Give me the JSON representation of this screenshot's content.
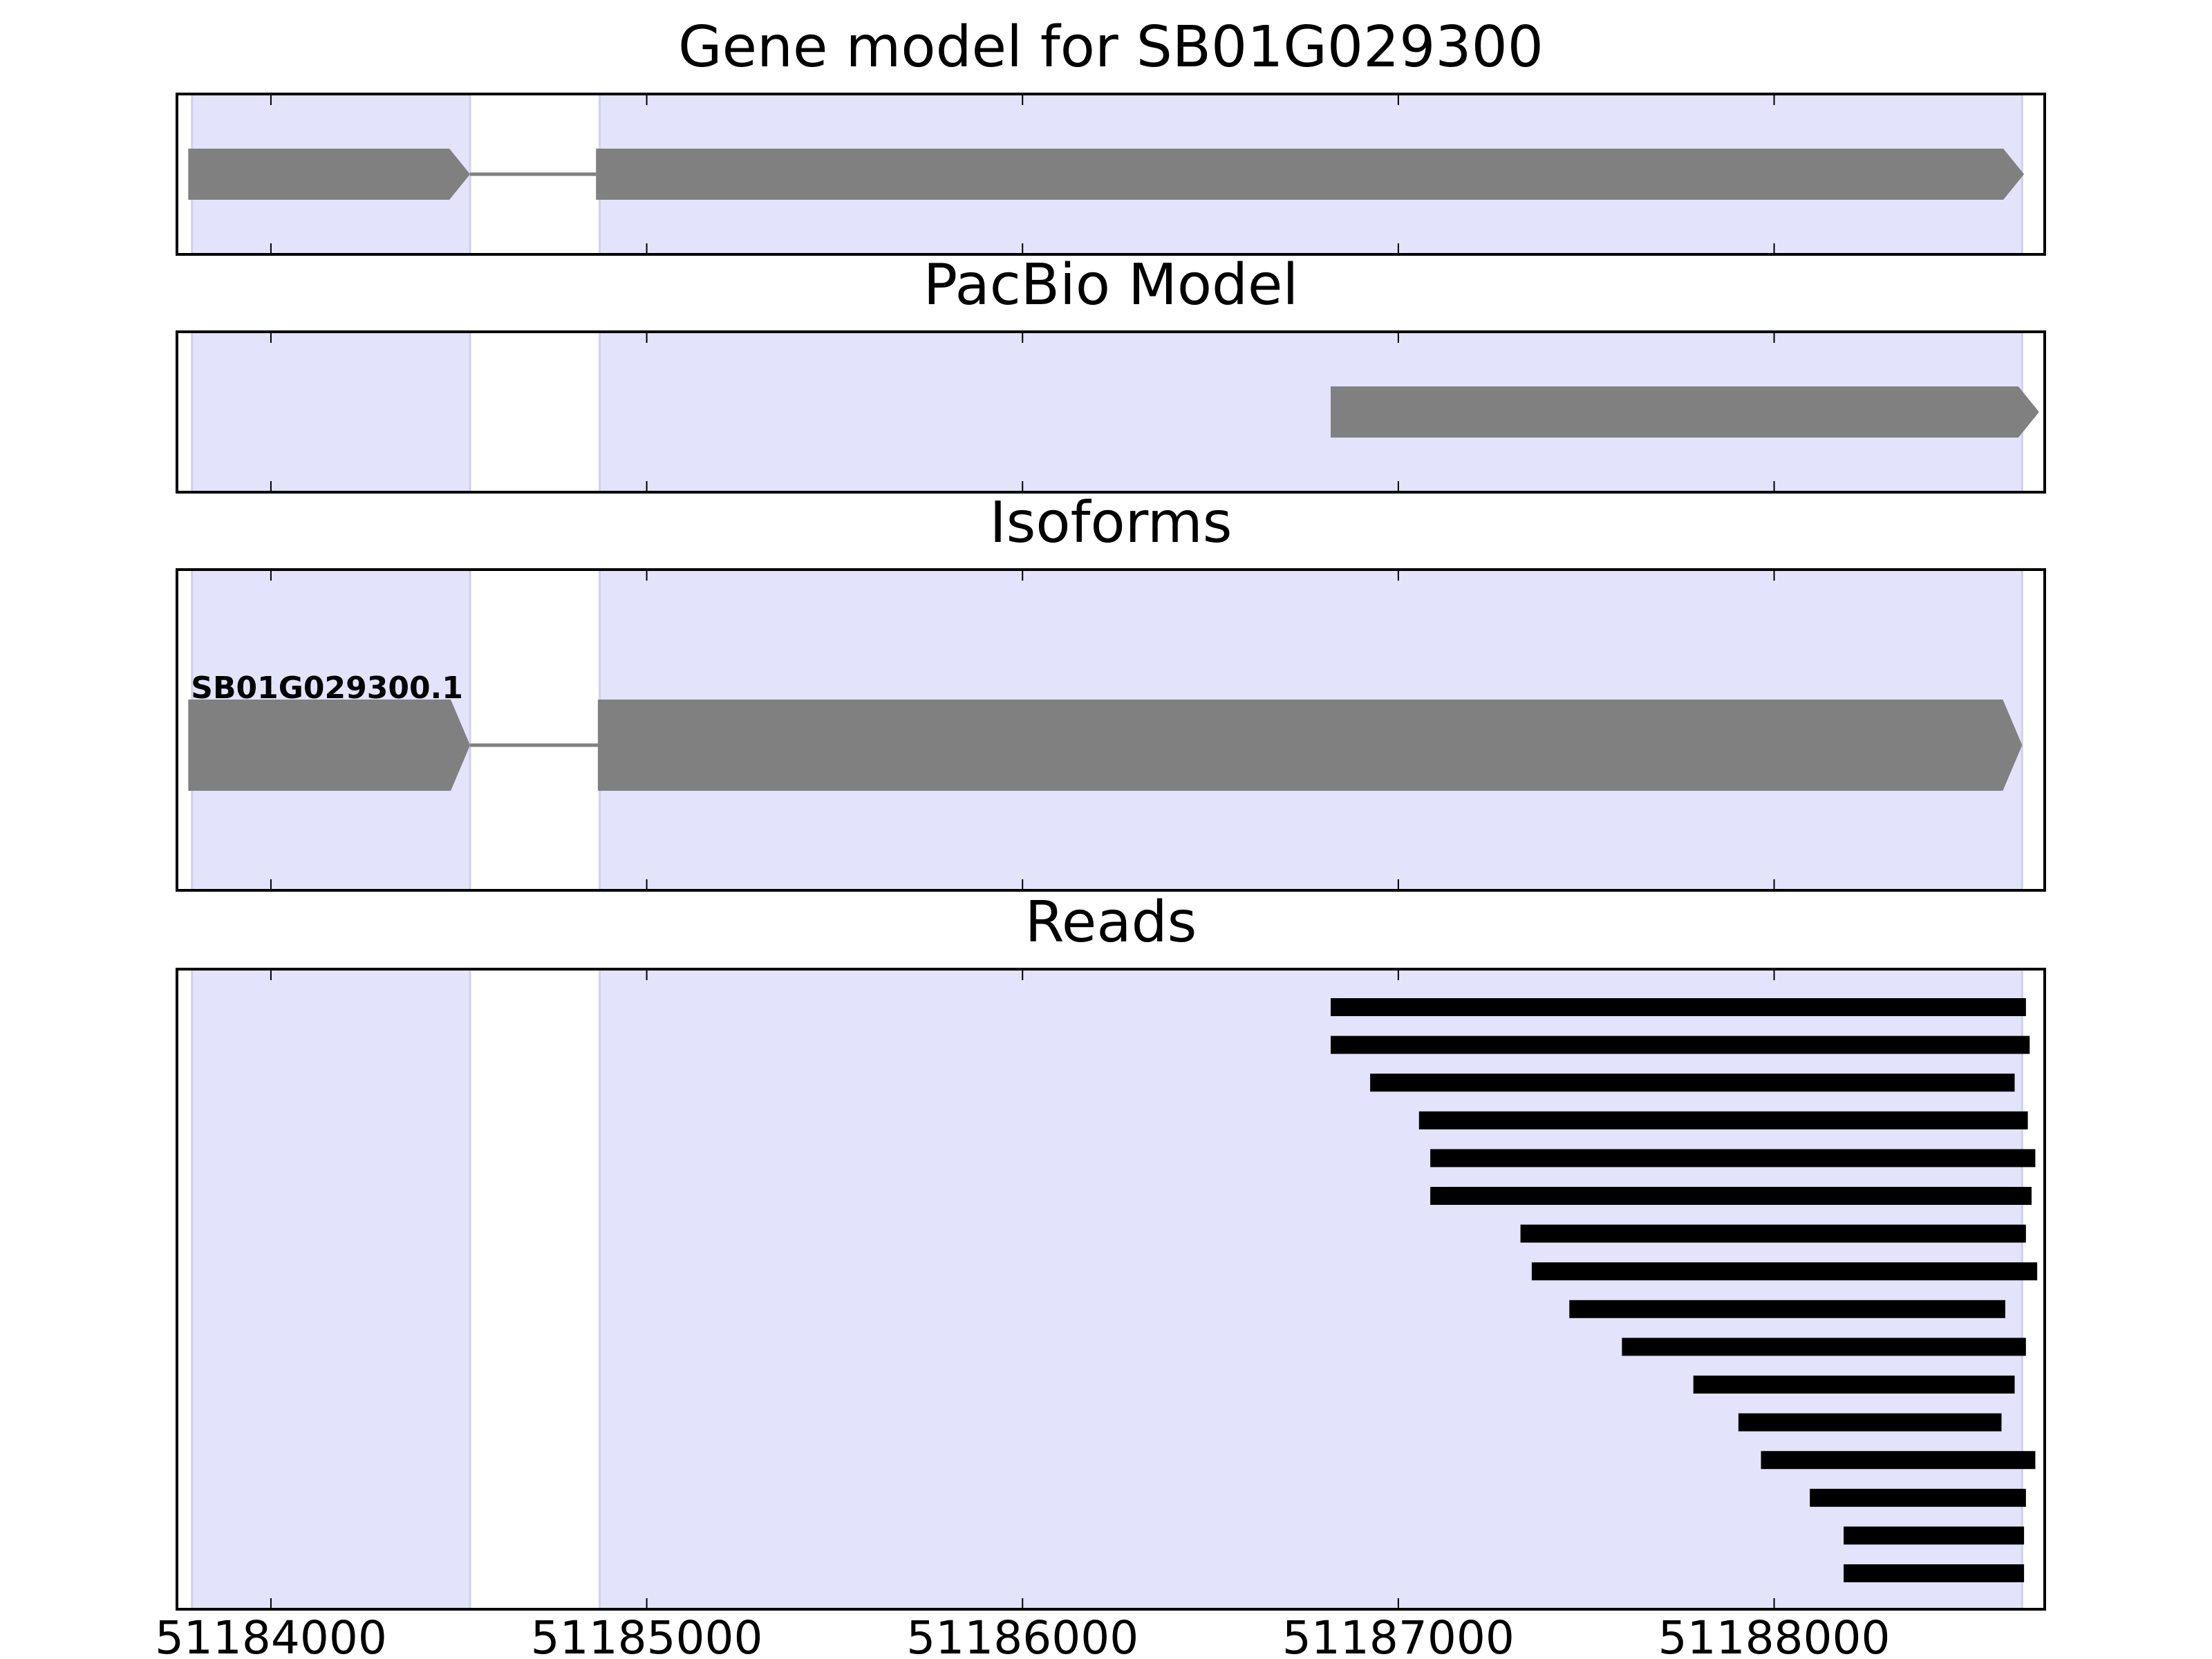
{
  "chart_data": [
    {
      "type": "gantt",
      "title": "Gene model for SB01G029300",
      "x_axis": {
        "range": [
          51183750,
          51188720
        ],
        "ticks": [
          51184000,
          51185000,
          51186000,
          51187000,
          51188000
        ]
      },
      "exon_regions": [
        [
          51183790,
          51184530
        ],
        [
          51184875,
          51188660
        ]
      ],
      "features": [
        {
          "start": 51183780,
          "end": 51184530,
          "strand": "+"
        },
        {
          "start": 51184865,
          "end": 51188665,
          "strand": "+"
        }
      ],
      "introns": [
        [
          51184530,
          51184865
        ]
      ]
    },
    {
      "type": "gantt",
      "title": "PacBio Model",
      "features": [
        {
          "start": 51186820,
          "end": 51188705,
          "strand": "+"
        }
      ]
    },
    {
      "type": "gantt",
      "title": "Isoforms",
      "isoforms": [
        {
          "label": "SB01G029300.1",
          "exons": [
            [
              51183780,
              51184530
            ],
            [
              51184870,
              51188660
            ]
          ],
          "introns": [
            [
              51184530,
              51184870
            ]
          ],
          "strand": "+"
        }
      ]
    },
    {
      "type": "gantt",
      "title": "Reads",
      "reads": [
        [
          51186820,
          51188670
        ],
        [
          51186820,
          51188680
        ],
        [
          51186925,
          51188640
        ],
        [
          51187055,
          51188675
        ],
        [
          51187085,
          51188695
        ],
        [
          51187085,
          51188685
        ],
        [
          51187325,
          51188670
        ],
        [
          51187355,
          51188700
        ],
        [
          51187455,
          51188615
        ],
        [
          51187595,
          51188670
        ],
        [
          51187785,
          51188640
        ],
        [
          51187905,
          51188605
        ],
        [
          51187965,
          51188695
        ],
        [
          51188095,
          51188670
        ],
        [
          51188185,
          51188665
        ],
        [
          51188185,
          51188665
        ]
      ]
    }
  ],
  "colors": {
    "exon_band": "#e3e3fc",
    "exon_band_edge": "#cfcfef",
    "feature": "#808080",
    "read": "#000000",
    "frame": "#000000"
  }
}
